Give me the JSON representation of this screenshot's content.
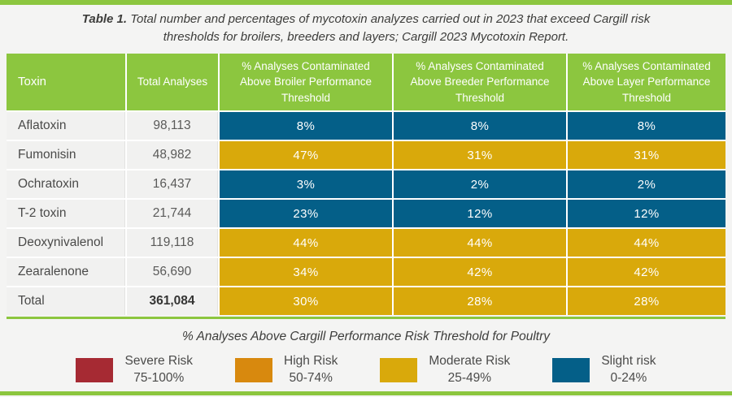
{
  "title": {
    "label": "Table 1.",
    "text": "Total number and percentages of mycotoxin analyzes carried out in 2023 that exceed Cargill risk thresholds for broilers, breeders and layers; Cargill 2023 Mycotoxin Report."
  },
  "table": {
    "headers": [
      "Toxin",
      "Total Analyses",
      "% Analyses Contaminated Above Broiler Performance Threshold",
      "% Analyses Contaminated Above Breeder Performance Threshold",
      "% Analyses Contaminated Above Layer Performance Threshold"
    ],
    "rows": [
      {
        "toxin": "Aflatoxin",
        "total": "98,113",
        "bold": false,
        "values": [
          {
            "pct": "8%",
            "level": "slight"
          },
          {
            "pct": "8%",
            "level": "slight"
          },
          {
            "pct": "8%",
            "level": "slight"
          }
        ]
      },
      {
        "toxin": "Fumonisin",
        "total": "48,982",
        "bold": false,
        "values": [
          {
            "pct": "47%",
            "level": "moderate"
          },
          {
            "pct": "31%",
            "level": "moderate"
          },
          {
            "pct": "31%",
            "level": "moderate"
          }
        ]
      },
      {
        "toxin": "Ochratoxin",
        "total": "16,437",
        "bold": false,
        "values": [
          {
            "pct": "3%",
            "level": "slight"
          },
          {
            "pct": "2%",
            "level": "slight"
          },
          {
            "pct": "2%",
            "level": "slight"
          }
        ]
      },
      {
        "toxin": "T-2 toxin",
        "total": "21,744",
        "bold": false,
        "values": [
          {
            "pct": "23%",
            "level": "slight"
          },
          {
            "pct": "12%",
            "level": "slight"
          },
          {
            "pct": "12%",
            "level": "slight"
          }
        ]
      },
      {
        "toxin": "Deoxynivalenol",
        "total": "119,118",
        "bold": false,
        "values": [
          {
            "pct": "44%",
            "level": "moderate"
          },
          {
            "pct": "44%",
            "level": "moderate"
          },
          {
            "pct": "44%",
            "level": "moderate"
          }
        ]
      },
      {
        "toxin": "Zearalenone",
        "total": "56,690",
        "bold": false,
        "values": [
          {
            "pct": "34%",
            "level": "moderate"
          },
          {
            "pct": "42%",
            "level": "moderate"
          },
          {
            "pct": "42%",
            "level": "moderate"
          }
        ]
      },
      {
        "toxin": "Total",
        "total": "361,084",
        "bold": true,
        "values": [
          {
            "pct": "30%",
            "level": "moderate"
          },
          {
            "pct": "28%",
            "level": "moderate"
          },
          {
            "pct": "28%",
            "level": "moderate"
          }
        ]
      }
    ]
  },
  "legend": {
    "title": "% Analyses Above Cargill Performance Risk Threshold for Poultry",
    "items": [
      {
        "label": "Severe Risk",
        "range": "75-100%",
        "level": "severe"
      },
      {
        "label": "High Risk",
        "range": "50-74%",
        "level": "high"
      },
      {
        "label": "Moderate Risk",
        "range": "25-49%",
        "level": "moderate"
      },
      {
        "label": "Slight risk",
        "range": "0-24%",
        "level": "slight"
      }
    ]
  },
  "colors": {
    "accent_green": "#8CC63F",
    "severe": "#A62A33",
    "high": "#D8890E",
    "moderate": "#D9A90B",
    "slight": "#045F88",
    "header_text": "#FFFFFF"
  },
  "chart_data": {
    "type": "table",
    "title": "Table 1. Total number and percentages of mycotoxin analyzes carried out in 2023 that exceed Cargill risk thresholds for broilers, breeders and layers; Cargill 2023 Mycotoxin Report.",
    "columns": [
      "Toxin",
      "Total Analyses",
      "% Analyses Contaminated Above Broiler Performance Threshold",
      "% Analyses Contaminated Above Breeder Performance Threshold",
      "% Analyses Contaminated Above Layer Performance Threshold"
    ],
    "rows": [
      [
        "Aflatoxin",
        98113,
        8,
        8,
        8
      ],
      [
        "Fumonisin",
        48982,
        47,
        31,
        31
      ],
      [
        "Ochratoxin",
        16437,
        3,
        2,
        2
      ],
      [
        "T-2 toxin",
        21744,
        23,
        12,
        12
      ],
      [
        "Deoxynivalenol",
        119118,
        44,
        44,
        44
      ],
      [
        "Zearalenone",
        56690,
        34,
        42,
        42
      ],
      [
        "Total",
        361084,
        30,
        28,
        28
      ]
    ],
    "percent_units": "%",
    "risk_levels_per_row": [
      [
        "slight",
        "slight",
        "slight"
      ],
      [
        "moderate",
        "moderate",
        "moderate"
      ],
      [
        "slight",
        "slight",
        "slight"
      ],
      [
        "slight",
        "slight",
        "slight"
      ],
      [
        "moderate",
        "moderate",
        "moderate"
      ],
      [
        "moderate",
        "moderate",
        "moderate"
      ],
      [
        "moderate",
        "moderate",
        "moderate"
      ]
    ],
    "legend": [
      {
        "label": "Severe Risk",
        "range": "75-100%"
      },
      {
        "label": "High Risk",
        "range": "50-74%"
      },
      {
        "label": "Moderate Risk",
        "range": "25-49%"
      },
      {
        "label": "Slight risk",
        "range": "0-24%"
      }
    ],
    "legend_title": "% Analyses Above Cargill Performance Risk Threshold for Poultry"
  }
}
